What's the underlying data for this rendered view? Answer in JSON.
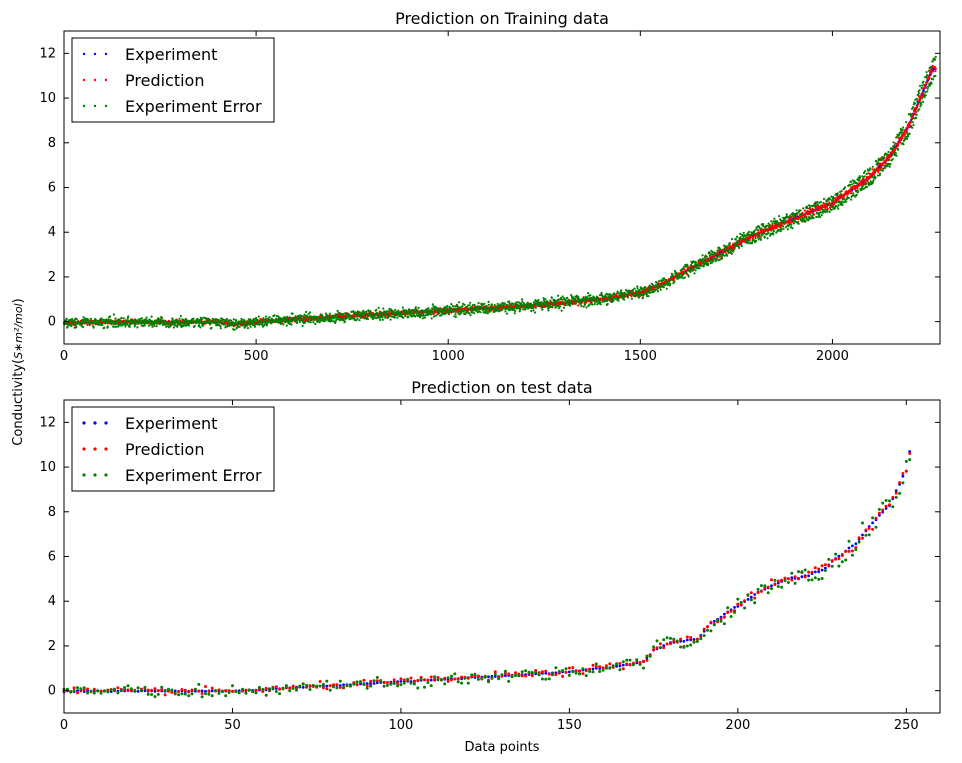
{
  "shared": {
    "ylabel": "Conductivity(",
    "ylabel_units": "S∗m²/mol",
    "ylabel_close": ")"
  },
  "chart_data": [
    {
      "type": "scatter",
      "title": "Prediction on Training data",
      "xlabel": "",
      "xlim": [
        0,
        2280
      ],
      "ylim": [
        -1,
        13
      ],
      "xticks": [
        "0",
        "500",
        "1000",
        "1500",
        "2000"
      ],
      "xtick_values": [
        0,
        500,
        1000,
        1500,
        2000
      ],
      "yticks": [
        "0",
        "2",
        "4",
        "6",
        "8",
        "10",
        "12"
      ],
      "ytick_values": [
        0,
        2,
        4,
        6,
        8,
        10,
        12
      ],
      "grid": false,
      "legend_position": "top-left",
      "n_points": 2270,
      "series": [
        {
          "name": "Experiment",
          "color": "#0000ff",
          "marker_size": 1.0,
          "noise": 0.03
        },
        {
          "name": "Prediction",
          "color": "#ff0000",
          "marker_size": 1.1,
          "noise": 0.12
        },
        {
          "name": "Experiment Error",
          "color": "#008000",
          "marker_size": 1.1,
          "noise": 0.2
        }
      ],
      "trend": {
        "x": [
          0,
          100,
          200,
          300,
          400,
          440,
          480,
          500,
          700,
          900,
          1000,
          1200,
          1400,
          1500,
          1550,
          1600,
          1700,
          1800,
          1900,
          2000,
          2100,
          2150,
          2200,
          2260
        ],
        "y": [
          -0.05,
          -0.03,
          -0.02,
          -0.02,
          -0.02,
          -0.1,
          -0.1,
          0.0,
          0.2,
          0.4,
          0.5,
          0.7,
          1.0,
          1.3,
          1.6,
          2.1,
          3.0,
          3.9,
          4.6,
          5.3,
          6.5,
          7.4,
          8.8,
          11.3
        ]
      }
    },
    {
      "type": "scatter",
      "title": "Prediction on test data",
      "xlabel": "Data points",
      "xlim": [
        0,
        260
      ],
      "ylim": [
        -1,
        13
      ],
      "xticks": [
        "0",
        "50",
        "100",
        "150",
        "200",
        "250"
      ],
      "xtick_values": [
        0,
        50,
        100,
        150,
        200,
        250
      ],
      "yticks": [
        "0",
        "2",
        "4",
        "6",
        "8",
        "10",
        "12"
      ],
      "ytick_values": [
        0,
        2,
        4,
        6,
        8,
        10,
        12
      ],
      "grid": false,
      "legend_position": "top-left",
      "n_points": 252,
      "series": [
        {
          "name": "Experiment",
          "color": "#0000ff",
          "marker_size": 1.4,
          "noise": 0.04
        },
        {
          "name": "Prediction",
          "color": "#ff0000",
          "marker_size": 1.5,
          "noise": 0.18
        },
        {
          "name": "Experiment Error",
          "color": "#008000",
          "marker_size": 1.5,
          "noise": 0.22
        }
      ],
      "trend": {
        "x": [
          0,
          30,
          50,
          55,
          70,
          100,
          130,
          150,
          165,
          172,
          175,
          180,
          188,
          192,
          200,
          205,
          210,
          215,
          220,
          225,
          230,
          235,
          240,
          245,
          250,
          252
        ],
        "y": [
          -0.02,
          -0.02,
          -0.02,
          0.0,
          0.15,
          0.4,
          0.65,
          0.85,
          1.1,
          1.3,
          1.8,
          2.15,
          2.3,
          3.0,
          3.8,
          4.3,
          4.7,
          5.0,
          5.1,
          5.4,
          6.0,
          6.6,
          7.5,
          8.3,
          9.9,
          11.5
        ]
      }
    }
  ]
}
